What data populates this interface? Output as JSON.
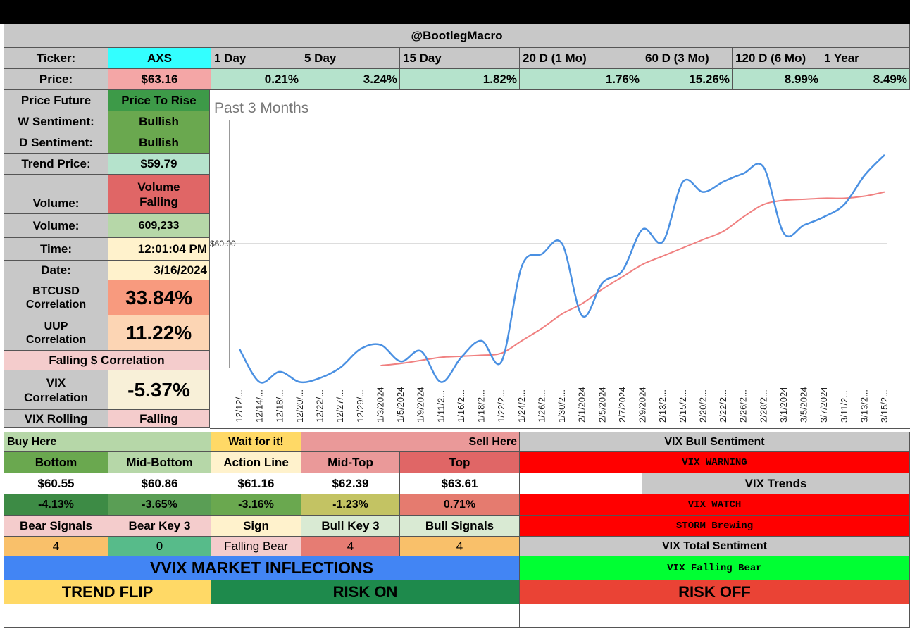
{
  "header": {
    "title": "@BootlegMacro"
  },
  "top_labels": {
    "ticker": "Ticker:",
    "price": "Price:",
    "price_future": "Price Future",
    "w_sentiment": "W Sentiment:",
    "d_sentiment": "D Sentiment:",
    "trend_price": "Trend Price:",
    "volume_state": "Volume:",
    "volume_value": "Volume:",
    "time": "Time:",
    "date": "Date:",
    "btc_corr_1": "BTCUSD",
    "btc_corr_2": "Correlation",
    "uup_corr_1": "UUP",
    "uup_corr_2": "Correlation",
    "falling_corr": "Falling $ Correlation",
    "vix_corr_1": "VIX",
    "vix_corr_2": "Correlation",
    "vix_rolling": "VIX Rolling"
  },
  "values": {
    "ticker": "AXS",
    "price": "$63.16",
    "price_future": "Price To Rise",
    "w_sentiment": "Bullish",
    "d_sentiment": "Bullish",
    "trend_price": "$59.79",
    "volume_state_1": "Volume",
    "volume_state_2": "Falling",
    "volume": "609,233",
    "time": "12:01:04 PM",
    "date": "3/16/2024",
    "btc_corr": "33.84%",
    "uup_corr": "11.22%",
    "vix_corr": "-5.37%",
    "vix_rolling": "Falling"
  },
  "periods": {
    "labels": [
      "1 Day",
      "5 Day",
      "15 Day",
      "20 D (1 Mo)",
      "60 D (3 Mo)",
      "120 D (6 Mo)",
      "1 Year"
    ],
    "values": [
      "0.21%",
      "3.24%",
      "1.82%",
      "1.76%",
      "15.26%",
      "8.99%",
      "8.49%"
    ]
  },
  "chart_data": {
    "type": "line",
    "title": "Past 3 Months",
    "y_tick_label": "$60.00",
    "y_tick_value": 60,
    "ylim": [
      54,
      66
    ],
    "x": [
      "12/12/...",
      "12/14/...",
      "12/18/...",
      "12/20/...",
      "12/22/...",
      "12/27/...",
      "12/29/...",
      "1/3/2024",
      "1/5/2024",
      "1/9/2024",
      "1/11/2...",
      "1/16/2...",
      "1/18/2...",
      "1/22/2...",
      "1/24/2...",
      "1/26/2...",
      "1/30/2...",
      "2/1/2024",
      "2/5/2024",
      "2/7/2024",
      "2/9/2024",
      "2/13/2...",
      "2/15/2...",
      "2/20/2...",
      "2/22/2...",
      "2/26/2...",
      "2/28/2...",
      "3/1/2024",
      "3/5/2024",
      "3/7/2024",
      "3/11/2...",
      "3/13/2...",
      "3/15/2..."
    ],
    "series": [
      {
        "name": "Price",
        "color": "#4a90e2",
        "values": [
          54.9,
          53.3,
          53.8,
          53.3,
          53.5,
          54.0,
          54.9,
          55.1,
          54.3,
          54.8,
          53.3,
          54.5,
          55.3,
          54.3,
          58.9,
          59.5,
          60.0,
          56.5,
          58.1,
          58.7,
          60.7,
          60.1,
          63.0,
          62.5,
          63.0,
          63.4,
          63.7,
          60.5,
          60.9,
          61.3,
          61.9,
          63.3,
          64.3
        ]
      },
      {
        "name": "Trend",
        "color": "#f08080",
        "values": [
          null,
          null,
          null,
          null,
          null,
          null,
          null,
          54.1,
          54.2,
          54.35,
          54.5,
          54.55,
          54.6,
          54.7,
          55.3,
          55.9,
          56.6,
          57.1,
          57.8,
          58.4,
          59.0,
          59.4,
          59.8,
          60.2,
          60.6,
          61.3,
          61.9,
          62.1,
          62.15,
          62.2,
          62.2,
          62.3,
          62.5
        ]
      }
    ]
  },
  "levels": {
    "buy_here": "Buy Here",
    "wait": "Wait for it!",
    "sell_here": "Sell Here",
    "headers": [
      "Bottom",
      "Mid-Bottom",
      "Action Line",
      "Mid-Top",
      "Top"
    ],
    "prices": [
      "$60.55",
      "$60.86",
      "$61.16",
      "$62.39",
      "$63.61"
    ],
    "pcts": [
      "-4.13%",
      "-3.65%",
      "-3.16%",
      "-1.23%",
      "0.71%"
    ],
    "signal_headers": [
      "Bear Signals",
      "Bear Key 3",
      "Sign",
      "Bull Key 3",
      "Bull Signals"
    ],
    "signal_values": [
      "4",
      "0",
      "Falling Bear",
      "4",
      "4"
    ]
  },
  "vix": {
    "bull_sentiment": "VIX Bull Sentiment",
    "warning": "VIX WARNING",
    "trends": "VIX Trends",
    "watch": "VIX WATCH",
    "storm": "STORM Brewing",
    "total_sentiment": "VIX Total Sentiment",
    "falling_bear": "VIX Falling Bear"
  },
  "footer": {
    "banner": "VVIX MARKET INFLECTIONS",
    "trend_flip": "TREND FLIP",
    "risk_on": "RISK ON",
    "risk_off": "RISK OFF"
  },
  "colors": {
    "cyan": "#33ffff",
    "pink": "#f4a6a6",
    "mint": "#b5e3cc",
    "green_dark": "#3d9a48",
    "green_mid": "#6aa84f",
    "red_mid": "#e06666",
    "light_green": "#b6d7a8",
    "yellow": "#fff2cc",
    "salmon": "#f89a7e",
    "peach": "#fcd5b4",
    "light_pink": "#f4cccc",
    "cream": "#f8f0d8",
    "red": "#ff0000",
    "lime": "#00ff33",
    "blue": "#4285f4",
    "gold": "#ffd966",
    "gray": "#c8c8c8"
  }
}
